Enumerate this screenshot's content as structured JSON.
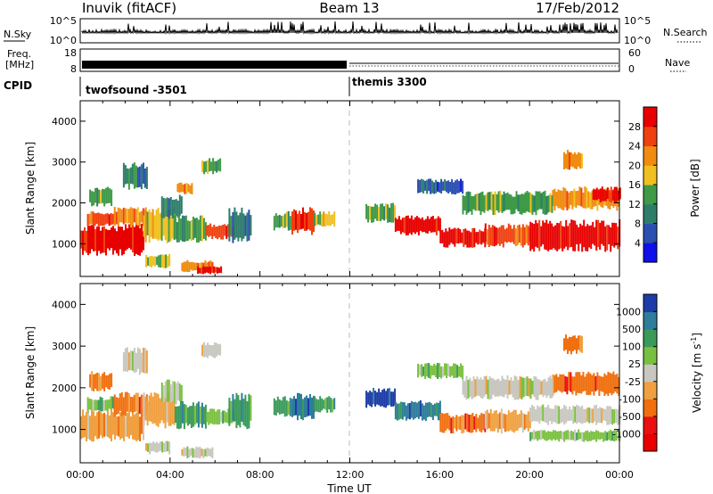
{
  "header": {
    "station": "Inuvik (fitACF)",
    "beam": "Beam 13",
    "date": "17/Feb/2012"
  },
  "noise_panel": {
    "left_label": "N.Sky",
    "right_label": "N.Search",
    "left_ticks": [
      "10^5",
      "10^0"
    ],
    "right_ticks": [
      "10^5",
      "10^0"
    ]
  },
  "freq_panel": {
    "left_label_line1": "Freq.",
    "left_label_line2": "[MHz]",
    "right_label": "Nave",
    "left_ticks": [
      "18",
      "8"
    ],
    "right_ticks": [
      "60",
      "0"
    ]
  },
  "cpid": {
    "label": "CPID",
    "programs": [
      {
        "name": "twofsound -3501",
        "start_hour": 0,
        "end_hour": 12
      },
      {
        "name": "themis 3300",
        "start_hour": 12,
        "end_hour": 24
      }
    ]
  },
  "chart_data": [
    {
      "type": "heatmap",
      "name": "power",
      "xlabel": "",
      "ylabel": "Slant Range [km]",
      "xlim": [
        0,
        24
      ],
      "ylim": [
        200,
        4500
      ],
      "yticks": [
        "1000",
        "2000",
        "3000",
        "4000"
      ],
      "colorbar": {
        "label": "Power [dB]",
        "ticks": [
          "4",
          "8",
          "12",
          "16",
          "20",
          "24",
          "28"
        ],
        "colors": [
          "#1010e8",
          "#2a4fb0",
          "#2e7d6a",
          "#3f9a48",
          "#f0c020",
          "#f08c10",
          "#f04010",
          "#e80000"
        ]
      },
      "cells": [
        {
          "t0": 0.0,
          "t1": 2.8,
          "r0": 700,
          "r1": 1500,
          "c": 7
        },
        {
          "t0": 0.3,
          "t1": 1.5,
          "r0": 1400,
          "r1": 1800,
          "c": 6
        },
        {
          "t0": 1.5,
          "t1": 3.0,
          "r0": 1400,
          "r1": 1900,
          "c": 5
        },
        {
          "t0": 2.8,
          "t1": 4.2,
          "r0": 1000,
          "r1": 1900,
          "c": 4
        },
        {
          "t0": 3.6,
          "t1": 4.5,
          "r0": 1600,
          "r1": 2200,
          "c": 2
        },
        {
          "t0": 4.2,
          "t1": 5.6,
          "r0": 1000,
          "r1": 1700,
          "c": 3
        },
        {
          "t0": 5.6,
          "t1": 6.8,
          "r0": 1100,
          "r1": 1500,
          "c": 6
        },
        {
          "t0": 6.6,
          "t1": 7.6,
          "r0": 1000,
          "r1": 1900,
          "c": 2
        },
        {
          "t0": 2.9,
          "t1": 4.0,
          "r0": 400,
          "r1": 750,
          "c": 4
        },
        {
          "t0": 4.5,
          "t1": 5.9,
          "r0": 300,
          "r1": 600,
          "c": 5
        },
        {
          "t0": 5.2,
          "t1": 6.3,
          "r0": 250,
          "r1": 450,
          "c": 7
        },
        {
          "t0": 0.4,
          "t1": 1.4,
          "r0": 1900,
          "r1": 2400,
          "c": 3
        },
        {
          "t0": 1.9,
          "t1": 3.0,
          "r0": 2300,
          "r1": 3000,
          "c": 2
        },
        {
          "t0": 4.3,
          "t1": 5.0,
          "r0": 2200,
          "r1": 2500,
          "c": 5
        },
        {
          "t0": 5.4,
          "t1": 6.2,
          "r0": 2700,
          "r1": 3100,
          "c": 3
        },
        {
          "t0": 8.6,
          "t1": 9.4,
          "r0": 1300,
          "r1": 1800,
          "c": 3
        },
        {
          "t0": 9.4,
          "t1": 10.4,
          "r0": 1200,
          "r1": 1900,
          "c": 6
        },
        {
          "t0": 10.4,
          "t1": 11.3,
          "r0": 1400,
          "r1": 1800,
          "c": 4
        },
        {
          "t0": 12.7,
          "t1": 14.0,
          "r0": 1500,
          "r1": 2000,
          "c": 3
        },
        {
          "t0": 14.0,
          "t1": 16.0,
          "r0": 1200,
          "r1": 1700,
          "c": 7
        },
        {
          "t0": 16.0,
          "t1": 18.0,
          "r0": 900,
          "r1": 1400,
          "c": 7
        },
        {
          "t0": 18.0,
          "t1": 20.0,
          "r0": 900,
          "r1": 1500,
          "c": 6
        },
        {
          "t0": 20.0,
          "t1": 24.0,
          "r0": 800,
          "r1": 1600,
          "c": 7
        },
        {
          "t0": 21.0,
          "t1": 24.0,
          "r0": 1800,
          "r1": 2400,
          "c": 5
        },
        {
          "t0": 17.0,
          "t1": 21.0,
          "r0": 1700,
          "r1": 2300,
          "c": 3
        },
        {
          "t0": 22.8,
          "t1": 24.0,
          "r0": 2000,
          "r1": 2400,
          "c": 7
        },
        {
          "t0": 15.0,
          "t1": 17.0,
          "r0": 2200,
          "r1": 2600,
          "c": 1
        },
        {
          "t0": 21.5,
          "t1": 22.3,
          "r0": 2800,
          "r1": 3300,
          "c": 5
        }
      ]
    },
    {
      "type": "heatmap",
      "name": "velocity",
      "xlabel": "Time UT",
      "ylabel": "Slant Range [km]",
      "xlim": [
        0,
        24
      ],
      "ylim": [
        200,
        4500
      ],
      "xticks": [
        "00:00",
        "04:00",
        "08:00",
        "12:00",
        "16:00",
        "20:00",
        "00:00"
      ],
      "yticks": [
        "1000",
        "2000",
        "3000",
        "4000"
      ],
      "colorbar": {
        "label": "Velocity [m s",
        "label_sup": "-1",
        "label_end": "]",
        "ticks": [
          "1000",
          "500",
          "100",
          "25",
          "-25",
          "-100",
          "-500",
          "-1000"
        ],
        "colors": [
          "#1e3ca8",
          "#2e7d9a",
          "#3a9a5a",
          "#7ac040",
          "#c8c8c0",
          "#f0a040",
          "#f07010",
          "#e81010",
          "#e80000"
        ]
      },
      "cells": [
        {
          "t0": 0.0,
          "t1": 2.8,
          "r0": 700,
          "r1": 1500,
          "c": 5
        },
        {
          "t0": 0.3,
          "t1": 1.5,
          "r0": 1400,
          "r1": 1800,
          "c": 3
        },
        {
          "t0": 1.5,
          "t1": 3.0,
          "r0": 1300,
          "r1": 1900,
          "c": 6
        },
        {
          "t0": 2.8,
          "t1": 4.2,
          "r0": 1000,
          "r1": 1900,
          "c": 5
        },
        {
          "t0": 3.6,
          "t1": 4.5,
          "r0": 1600,
          "r1": 2200,
          "c": 4
        },
        {
          "t0": 4.2,
          "t1": 5.6,
          "r0": 1000,
          "r1": 1700,
          "c": 2
        },
        {
          "t0": 5.6,
          "t1": 6.8,
          "r0": 1100,
          "r1": 1500,
          "c": 3
        },
        {
          "t0": 6.6,
          "t1": 7.6,
          "r0": 1000,
          "r1": 1900,
          "c": 2
        },
        {
          "t0": 2.9,
          "t1": 4.0,
          "r0": 400,
          "r1": 750,
          "c": 4
        },
        {
          "t0": 4.5,
          "t1": 5.9,
          "r0": 300,
          "r1": 600,
          "c": 4
        },
        {
          "t0": 0.4,
          "t1": 1.4,
          "r0": 1900,
          "r1": 2400,
          "c": 6
        },
        {
          "t0": 1.9,
          "t1": 3.0,
          "r0": 2300,
          "r1": 3000,
          "c": 4
        },
        {
          "t0": 5.4,
          "t1": 6.2,
          "r0": 2700,
          "r1": 3100,
          "c": 4
        },
        {
          "t0": 8.6,
          "t1": 9.4,
          "r0": 1300,
          "r1": 1800,
          "c": 2
        },
        {
          "t0": 9.4,
          "t1": 10.4,
          "r0": 1200,
          "r1": 1900,
          "c": 1
        },
        {
          "t0": 10.4,
          "t1": 11.3,
          "r0": 1400,
          "r1": 1800,
          "c": 2
        },
        {
          "t0": 12.7,
          "t1": 14.0,
          "r0": 1500,
          "r1": 2000,
          "c": 0
        },
        {
          "t0": 14.0,
          "t1": 16.0,
          "r0": 1200,
          "r1": 1700,
          "c": 1
        },
        {
          "t0": 16.0,
          "t1": 18.0,
          "r0": 900,
          "r1": 1400,
          "c": 6
        },
        {
          "t0": 18.0,
          "t1": 20.0,
          "r0": 900,
          "r1": 1500,
          "c": 5
        },
        {
          "t0": 20.0,
          "t1": 24.0,
          "r0": 1100,
          "r1": 1600,
          "c": 4
        },
        {
          "t0": 20.0,
          "t1": 24.0,
          "r0": 700,
          "r1": 1000,
          "c": 3
        },
        {
          "t0": 21.0,
          "t1": 24.0,
          "r0": 1800,
          "r1": 2400,
          "c": 6
        },
        {
          "t0": 17.0,
          "t1": 21.0,
          "r0": 1700,
          "r1": 2300,
          "c": 4
        },
        {
          "t0": 15.0,
          "t1": 17.0,
          "r0": 2200,
          "r1": 2600,
          "c": 3
        },
        {
          "t0": 21.5,
          "t1": 22.3,
          "r0": 2800,
          "r1": 3300,
          "c": 6
        }
      ]
    }
  ]
}
